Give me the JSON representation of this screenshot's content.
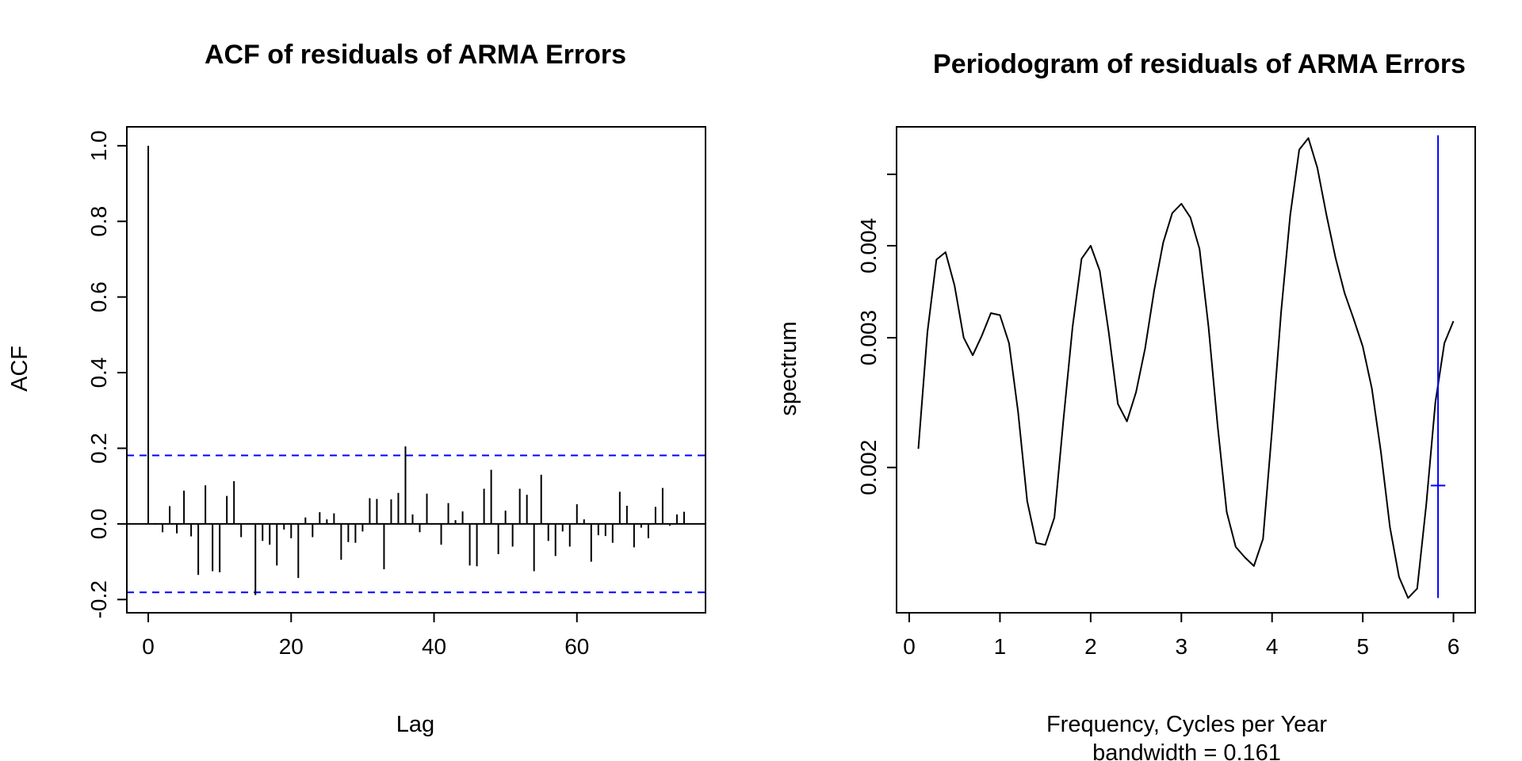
{
  "chart_data": [
    {
      "type": "bar",
      "title": "ACF of residuals of ARMA Errors",
      "xlabel": "Lag",
      "ylabel": "ACF",
      "xlim": [
        -3,
        78
      ],
      "ylim": [
        -0.235,
        1.05
      ],
      "x_ticks": [
        0,
        20,
        40,
        60
      ],
      "x_tick_labels": [
        "0",
        "20",
        "40",
        "60"
      ],
      "y_ticks": [
        -0.2,
        0.0,
        0.2,
        0.4,
        0.6,
        0.8,
        1.0
      ],
      "y_tick_labels": [
        "-0.2",
        "0.0",
        "0.2",
        "0.4",
        "0.6",
        "0.8",
        "1.0"
      ],
      "confidence_bound": 0.181,
      "confidence_color": "#0000ff",
      "lags": [
        0,
        1,
        2,
        3,
        4,
        5,
        6,
        7,
        8,
        9,
        10,
        11,
        12,
        13,
        14,
        15,
        16,
        17,
        18,
        19,
        20,
        21,
        22,
        23,
        24,
        25,
        26,
        27,
        28,
        29,
        30,
        31,
        32,
        33,
        34,
        35,
        36,
        37,
        38,
        39,
        40,
        41,
        42,
        43,
        44,
        45,
        46,
        47,
        48,
        49,
        50,
        51,
        52,
        53,
        54,
        55,
        56,
        57,
        58,
        59,
        60,
        61,
        62,
        63,
        64,
        65,
        66,
        67,
        68,
        69,
        70,
        71,
        72,
        73,
        74,
        75
      ],
      "values": [
        1.0,
        -0.002,
        -0.022,
        0.047,
        -0.025,
        0.088,
        -0.033,
        -0.135,
        0.102,
        -0.125,
        -0.128,
        0.074,
        0.113,
        -0.035,
        0.0,
        -0.188,
        -0.045,
        -0.055,
        -0.11,
        -0.015,
        -0.038,
        -0.143,
        0.017,
        -0.035,
        0.031,
        0.012,
        0.028,
        -0.095,
        -0.048,
        -0.05,
        -0.02,
        0.068,
        0.066,
        -0.12,
        0.065,
        0.082,
        0.205,
        0.025,
        -0.022,
        0.08,
        0.0,
        -0.055,
        0.055,
        0.01,
        0.033,
        -0.11,
        -0.112,
        0.093,
        0.143,
        -0.08,
        0.035,
        -0.06,
        0.093,
        0.077,
        -0.125,
        0.13,
        -0.045,
        -0.085,
        -0.02,
        -0.06,
        0.052,
        0.012,
        -0.1,
        -0.03,
        -0.032,
        -0.05,
        0.085,
        0.048,
        -0.062,
        -0.01,
        -0.038,
        0.045,
        0.095,
        -0.005,
        0.025,
        0.032
      ]
    },
    {
      "type": "line",
      "title": "Periodogram of residuals of ARMA Errors",
      "xlabel": "Frequency, Cycles per Year",
      "subtitle": "bandwidth = 0.161",
      "ylabel": "spectrum",
      "y_scale": "log",
      "xlim": [
        -0.14,
        6.24
      ],
      "ylim": [
        0.00127,
        0.0058
      ],
      "x_ticks": [
        0,
        1,
        2,
        3,
        4,
        5,
        6
      ],
      "x_tick_labels": [
        "0",
        "1",
        "2",
        "3",
        "4",
        "5",
        "6"
      ],
      "y_ticks": [
        0.002,
        0.003,
        0.004,
        0.005
      ],
      "y_tick_labels": [
        "0.002",
        "0.003",
        "0.004",
        ""
      ],
      "x": [
        0.1,
        0.2,
        0.3,
        0.4,
        0.5,
        0.6,
        0.7,
        0.8,
        0.9,
        1.0,
        1.1,
        1.2,
        1.3,
        1.4,
        1.5,
        1.6,
        1.7,
        1.8,
        1.9,
        2.0,
        2.1,
        2.2,
        2.3,
        2.4,
        2.5,
        2.6,
        2.7,
        2.8,
        2.9,
        3.0,
        3.1,
        3.2,
        3.3,
        3.4,
        3.5,
        3.6,
        3.7,
        3.8,
        3.9,
        4.0,
        4.1,
        4.2,
        4.3,
        4.4,
        4.5,
        4.6,
        4.7,
        4.8,
        4.9,
        5.0,
        5.1,
        5.2,
        5.3,
        5.4,
        5.5,
        5.6,
        5.7,
        5.8,
        5.9,
        6.0
      ],
      "y": [
        0.00212,
        0.00305,
        0.00383,
        0.00392,
        0.00353,
        0.003,
        0.00284,
        0.00302,
        0.00324,
        0.00322,
        0.00295,
        0.00238,
        0.0018,
        0.00158,
        0.00157,
        0.00171,
        0.00232,
        0.0031,
        0.00384,
        0.004,
        0.0037,
        0.00305,
        0.00244,
        0.00231,
        0.00253,
        0.0029,
        0.00348,
        0.00404,
        0.00443,
        0.00456,
        0.00437,
        0.00396,
        0.0031,
        0.00228,
        0.00174,
        0.00156,
        0.00151,
        0.00147,
        0.0016,
        0.00225,
        0.00325,
        0.0044,
        0.0054,
        0.0056,
        0.0051,
        0.0044,
        0.00385,
        0.00345,
        0.00318,
        0.00292,
        0.00256,
        0.0021,
        0.00166,
        0.00142,
        0.00133,
        0.00137,
        0.00178,
        0.00245,
        0.00295,
        0.00316
      ],
      "bandwidth_marker": {
        "x": 5.83,
        "center": 0.00189,
        "y_low": 0.00133,
        "y_high": 0.00565,
        "half_width": 0.0805,
        "color": "#0000ff"
      }
    }
  ]
}
